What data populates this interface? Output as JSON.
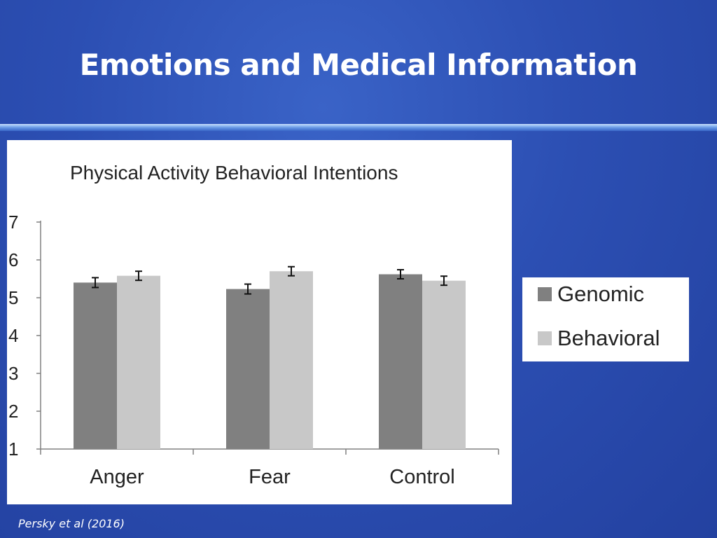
{
  "slide": {
    "title": "Emotions and Medical Information",
    "citation": "Persky et al (2016)"
  },
  "colors": {
    "genomic": "#808080",
    "behavioral": "#c8c8c8",
    "axis": "#808080",
    "text": "#222222"
  },
  "chart_data": {
    "type": "bar",
    "title": "Physical Activity Behavioral Intentions",
    "categories": [
      "Anger",
      "Fear",
      "Control"
    ],
    "series": [
      {
        "name": "Genomic",
        "values": [
          5.4,
          5.23,
          5.62
        ],
        "errors": [
          0.13,
          0.13,
          0.12
        ],
        "color": "#808080"
      },
      {
        "name": "Behavioral",
        "values": [
          5.58,
          5.7,
          5.45
        ],
        "errors": [
          0.12,
          0.12,
          0.12
        ],
        "color": "#c8c8c8"
      }
    ],
    "ylim": [
      1,
      7
    ],
    "yticks": [
      1,
      2,
      3,
      4,
      5,
      6,
      7
    ],
    "xlabel": "",
    "ylabel": "",
    "legend": "right"
  }
}
